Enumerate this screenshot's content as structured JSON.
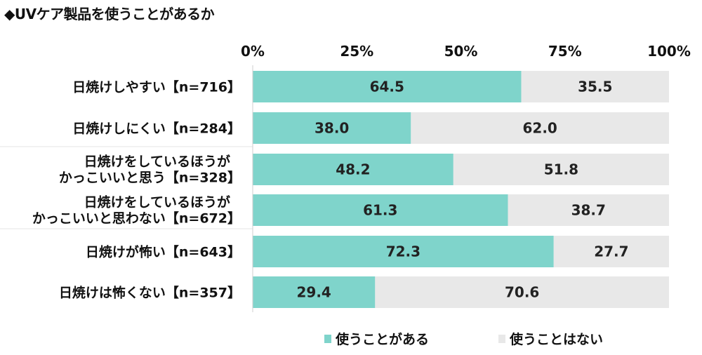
{
  "chart_data": {
    "type": "bar",
    "title": "◆UVケア製品を使うことがあるか",
    "stacked": true,
    "orientation": "horizontal",
    "xlim": [
      0,
      100
    ],
    "x_ticks": [
      "0%",
      "25%",
      "50%",
      "75%",
      "100%"
    ],
    "categories": [
      [
        "日焼けしやすい【n=716】"
      ],
      [
        "日焼けしにくい【n=284】"
      ],
      [
        "日焼けをしているほうが",
        "かっこいいと思う【n=328】"
      ],
      [
        "日焼けをしているほうが",
        "かっこいいと思わない【n=672】"
      ],
      [
        "日焼けが怖い【n=643】"
      ],
      [
        "日焼けは怖くない【n=357】"
      ]
    ],
    "series": [
      {
        "name": "使うことがある",
        "color": "#7fd4cb",
        "values": [
          64.5,
          38.0,
          48.2,
          61.3,
          72.3,
          29.4
        ],
        "labels": [
          "64.5",
          "38.0",
          "48.2",
          "61.3",
          "72.3",
          "29.4"
        ]
      },
      {
        "name": "使うことはない",
        "color": "#e8e8e8",
        "values": [
          35.5,
          62.0,
          51.8,
          38.7,
          27.7,
          70.6
        ],
        "labels": [
          "35.5",
          "62.0",
          "51.8",
          "38.7",
          "27.7",
          "70.6"
        ]
      }
    ],
    "legend_position": "bottom"
  }
}
